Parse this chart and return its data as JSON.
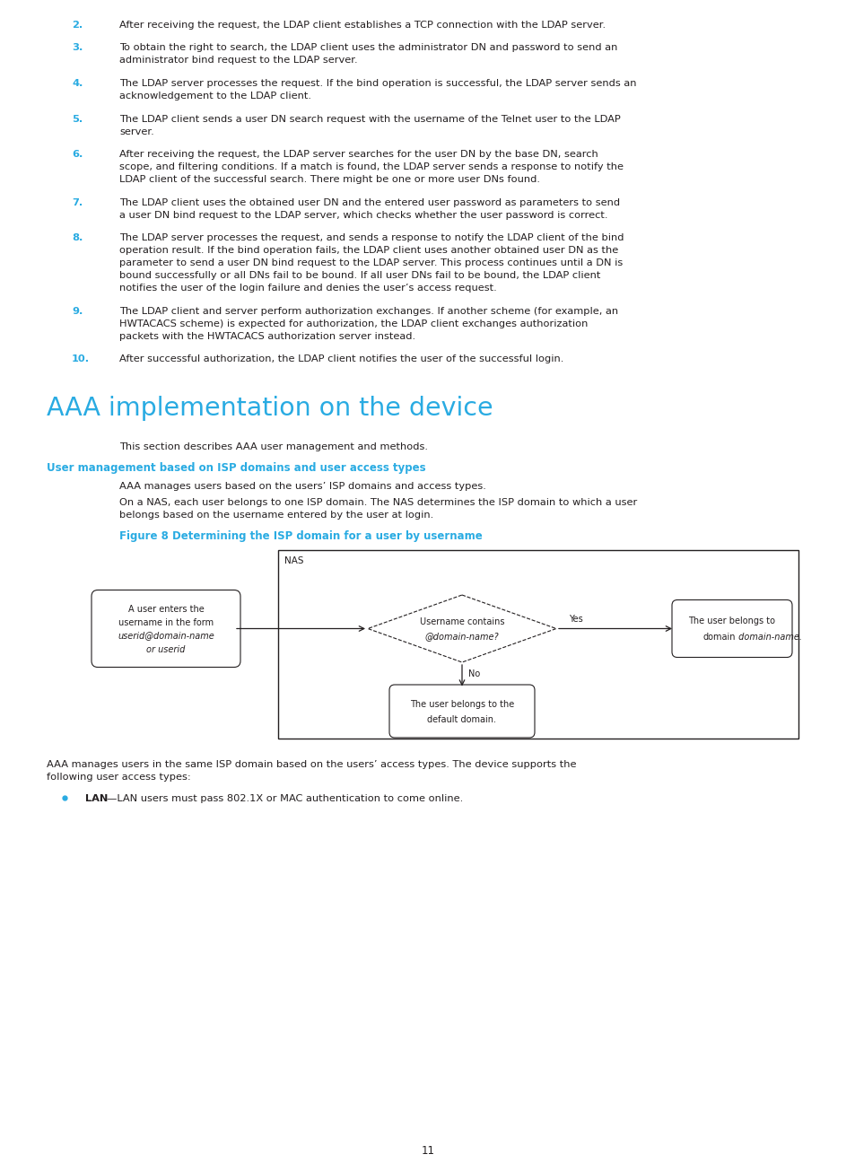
{
  "bg_color": "#ffffff",
  "cyan_color": "#29abe2",
  "black_color": "#231f20",
  "title": "AAA implementation on the device",
  "section_heading": "User management based on ISP domains and user access types",
  "figure_caption": "Figure 8 Determining the ISP domain for a user by username",
  "item2": "After receiving the request, the LDAP client establishes a TCP connection with the LDAP server.",
  "item3_l1": "To obtain the right to search, the LDAP client uses the administrator DN and password to send an",
  "item3_l2": "administrator bind request to the LDAP server.",
  "item4_l1": "The LDAP server processes the request. If the bind operation is successful, the LDAP server sends an",
  "item4_l2": "acknowledgement to the LDAP client.",
  "item5_l1": "The LDAP client sends a user DN search request with the username of the Telnet user to the LDAP",
  "item5_l2": "server.",
  "item6_l1": "After receiving the request, the LDAP server searches for the user DN by the base DN, search",
  "item6_l2": "scope, and filtering conditions. If a match is found, the LDAP server sends a response to notify the",
  "item6_l3": "LDAP client of the successful search. There might be one or more user DNs found.",
  "item7_l1": "The LDAP client uses the obtained user DN and the entered user password as parameters to send",
  "item7_l2": "a user DN bind request to the LDAP server, which checks whether the user password is correct.",
  "item8_l1": "The LDAP server processes the request, and sends a response to notify the LDAP client of the bind",
  "item8_l2": "operation result. If the bind operation fails, the LDAP client uses another obtained user DN as the",
  "item8_l3": "parameter to send a user DN bind request to the LDAP server. This process continues until a DN is",
  "item8_l4": "bound successfully or all DNs fail to be bound. If all user DNs fail to be bound, the LDAP client",
  "item8_l5": "notifies the user of the login failure and denies the user’s access request.",
  "item9_l1": "The LDAP client and server perform authorization exchanges. If another scheme (for example, an",
  "item9_l2": "HWTACACS scheme) is expected for authorization, the LDAP client exchanges authorization",
  "item9_l3": "packets with the HWTACACS authorization server instead.",
  "item10": "After successful authorization, the LDAP client notifies the user of the successful login.",
  "para1": "This section describes AAA user management and methods.",
  "para2": "AAA manages users based on the users’ ISP domains and access types.",
  "para3_l1": "On a NAS, each user belongs to one ISP domain. The NAS determines the ISP domain to which a user",
  "para3_l2": "belongs based on the username entered by the user at login.",
  "para4_l1": "AAA manages users in the same ISP domain based on the users’ access types. The device supports the",
  "para4_l2": "following user access types:",
  "bullet1_bold": "LAN",
  "bullet1_rest": "—LAN users must pass 802.1X or MAC authentication to come online.",
  "page_num": "11"
}
